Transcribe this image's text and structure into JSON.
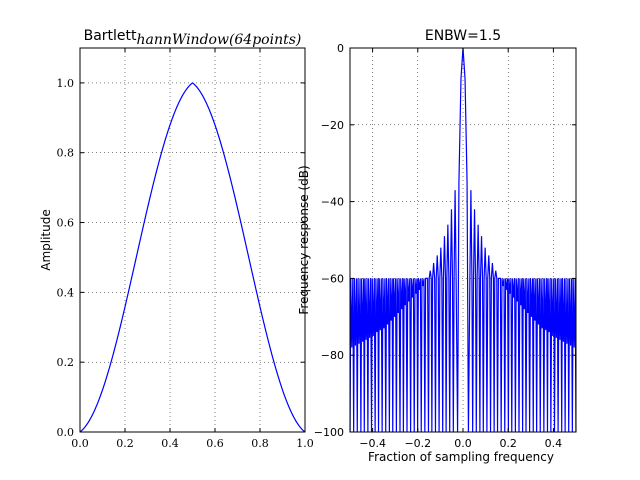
{
  "chart_data": [
    {
      "type": "line",
      "title": "Bartlett",
      "title_math_suffix": "hannWindow(64points)",
      "xlabel": "",
      "ylabel": "Amplitude",
      "xlim": [
        0.0,
        1.0
      ],
      "ylim": [
        0.0,
        1.1
      ],
      "xticks": [
        "0.0",
        "0.2",
        "0.4",
        "0.6",
        "0.8",
        "1.0"
      ],
      "yticks": [
        "0.0",
        "0.2",
        "0.4",
        "0.6",
        "0.8",
        "1.0"
      ],
      "grid": true,
      "line_color": "#0000ff",
      "series": [
        {
          "x": [
            0,
            0.05,
            0.1,
            0.15,
            0.2,
            0.25,
            0.3,
            0.35,
            0.4,
            0.45,
            0.5,
            0.55,
            0.6,
            0.65,
            0.7,
            0.75,
            0.8,
            0.85,
            0.9,
            0.95,
            1.0
          ],
          "values": [
            0.0,
            0.04,
            0.1,
            0.19,
            0.32,
            0.48,
            0.64,
            0.79,
            0.91,
            0.98,
            1.0,
            0.98,
            0.91,
            0.79,
            0.64,
            0.48,
            0.32,
            0.19,
            0.1,
            0.04,
            0.0
          ]
        }
      ]
    },
    {
      "type": "line",
      "title": "ENBW=1.5",
      "xlabel": "Fraction of sampling frequency",
      "ylabel": "Frequency response (dB)",
      "xlim": [
        -0.5,
        0.5
      ],
      "ylim": [
        -100,
        0
      ],
      "xticks": [
        "−0.4",
        "−0.2",
        "0.0",
        "0.2",
        "0.4"
      ],
      "yticks": [
        "−100",
        "−80",
        "−60",
        "−40",
        "−20",
        "0"
      ],
      "grid": true,
      "line_color": "#0000ff",
      "mainlobe_peak_db": 0,
      "sidelobe_peaks_db": [
        {
          "x": 0.035,
          "db": -37
        },
        {
          "x": 0.051,
          "db": -42
        },
        {
          "x": 0.067,
          "db": -46
        },
        {
          "x": 0.082,
          "db": -49
        },
        {
          "x": 0.098,
          "db": -52
        },
        {
          "x": 0.114,
          "db": -54
        },
        {
          "x": 0.13,
          "db": -56
        },
        {
          "x": 0.145,
          "db": -58
        },
        {
          "x": 0.161,
          "db": -60
        },
        {
          "x": 0.177,
          "db": -62
        },
        {
          "x": 0.193,
          "db": -63
        },
        {
          "x": 0.208,
          "db": -64
        },
        {
          "x": 0.224,
          "db": -65
        },
        {
          "x": 0.24,
          "db": -66
        },
        {
          "x": 0.256,
          "db": -67
        },
        {
          "x": 0.271,
          "db": -68
        },
        {
          "x": 0.287,
          "db": -69
        },
        {
          "x": 0.303,
          "db": -70
        },
        {
          "x": 0.318,
          "db": -71
        },
        {
          "x": 0.334,
          "db": -72
        },
        {
          "x": 0.35,
          "db": -73
        },
        {
          "x": 0.366,
          "db": -73.5
        },
        {
          "x": 0.381,
          "db": -74
        },
        {
          "x": 0.397,
          "db": -75
        },
        {
          "x": 0.413,
          "db": -75.5
        },
        {
          "x": 0.429,
          "db": -76
        },
        {
          "x": 0.444,
          "db": -76.5
        },
        {
          "x": 0.46,
          "db": -77
        },
        {
          "x": 0.476,
          "db": -77.5
        },
        {
          "x": 0.492,
          "db": -78
        }
      ]
    }
  ]
}
